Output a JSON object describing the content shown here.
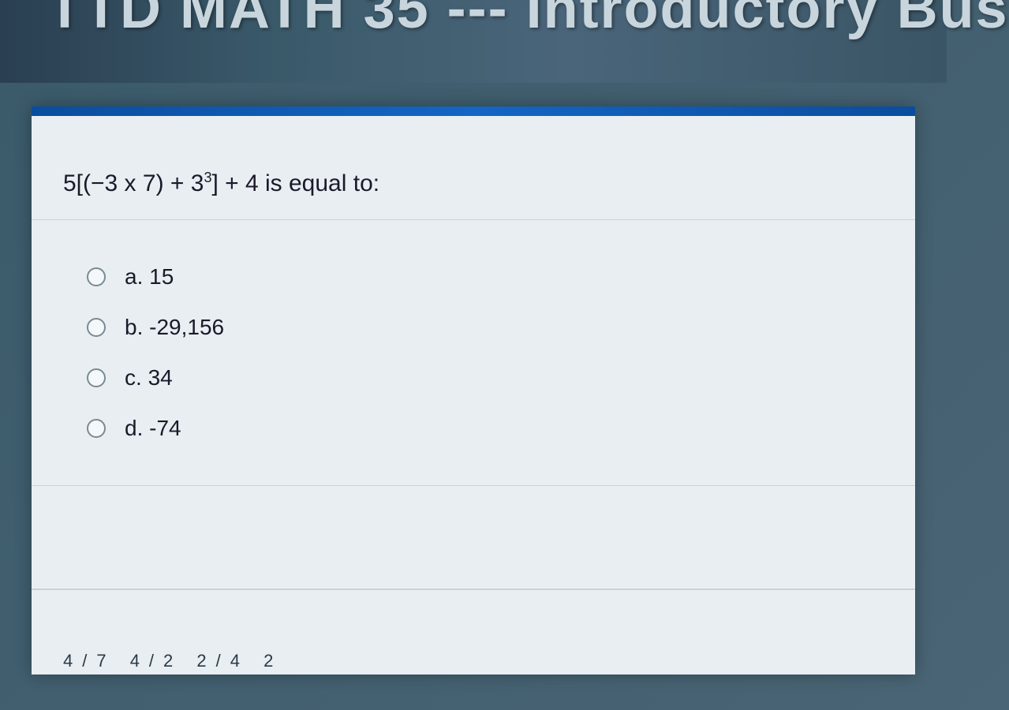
{
  "header": {
    "title_text": "TTD MATH 35 --- Introductory Bus"
  },
  "quiz": {
    "question_prefix": "5[(−3 x 7) + 3",
    "question_exponent": "3",
    "question_suffix": "] + 4 is equal to:",
    "options": [
      {
        "letter": "a.",
        "text": "15"
      },
      {
        "letter": "b.",
        "text": "-29,156"
      },
      {
        "letter": "c.",
        "text": "34"
      },
      {
        "letter": "d.",
        "text": "-74"
      }
    ]
  },
  "footer": {
    "page_fragments": "4/7  4/2  2/4  2"
  },
  "style": {
    "panel_bg": "#e8eef2",
    "accent_bar": "#1366c4",
    "text_color": "#1a1a2a",
    "border_color": "#c8d2d9",
    "radio_border": "#7a8a95",
    "question_fontsize": 30,
    "option_fontsize": 28
  }
}
